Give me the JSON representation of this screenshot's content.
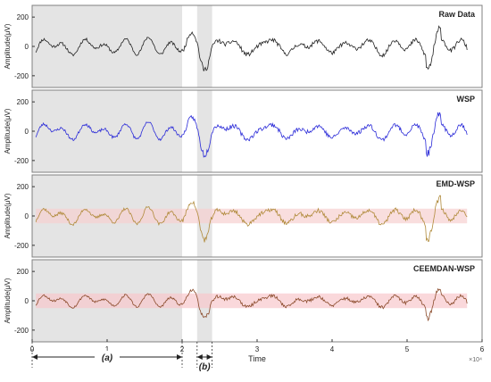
{
  "chart_data": [
    {
      "type": "line",
      "title": "Raw Data",
      "ylabel": "Amplitude(μV)",
      "yticks": [
        "200",
        "0",
        "-200"
      ],
      "ylim": [
        -280,
        280
      ],
      "color": "#222222",
      "band_color": "",
      "seed": 11,
      "series": [
        {
          "amplitude": 55
        }
      ]
    },
    {
      "type": "line",
      "title": "WSP",
      "ylabel": "Amplitude(μV)",
      "yticks": [
        "200",
        "0",
        "-200"
      ],
      "ylim": [
        -280,
        280
      ],
      "color": "#2a2ad8",
      "band_color": "",
      "seed": 23,
      "series": [
        {
          "amplitude": 55
        }
      ]
    },
    {
      "type": "line",
      "title": "EMD-WSP",
      "ylabel": "Amplitude(μV)",
      "yticks": [
        "200",
        "0",
        "-200"
      ],
      "ylim": [
        -280,
        280
      ],
      "color": "#b08a3a",
      "band_color": "#f6d0d0",
      "seed": 37,
      "series": [
        {
          "amplitude": 55
        }
      ]
    },
    {
      "type": "line",
      "title": "CEEMDAN-WSP",
      "ylabel": "Amplitude(μV)",
      "yticks": [
        "200",
        "0",
        "-200"
      ],
      "ylim": [
        -280,
        280
      ],
      "color": "#8a4a2a",
      "band_color": "#f8c8cc",
      "seed": 53,
      "series": [
        {
          "amplitude": 42
        }
      ]
    }
  ],
  "x_axis": {
    "label": "Time",
    "ticks": [
      "0",
      "1",
      "2",
      "3",
      "4",
      "5",
      "6"
    ],
    "xlim": [
      0,
      6
    ],
    "data_end": 5.8,
    "exponent": "×10⁴"
  },
  "regions": [
    {
      "label": "(a)",
      "start": 0,
      "end": 2.0
    },
    {
      "label": "(b)",
      "start": 2.2,
      "end": 2.4
    }
  ],
  "colors": {
    "shade": "#e4e4e4",
    "frame": "#808080"
  }
}
